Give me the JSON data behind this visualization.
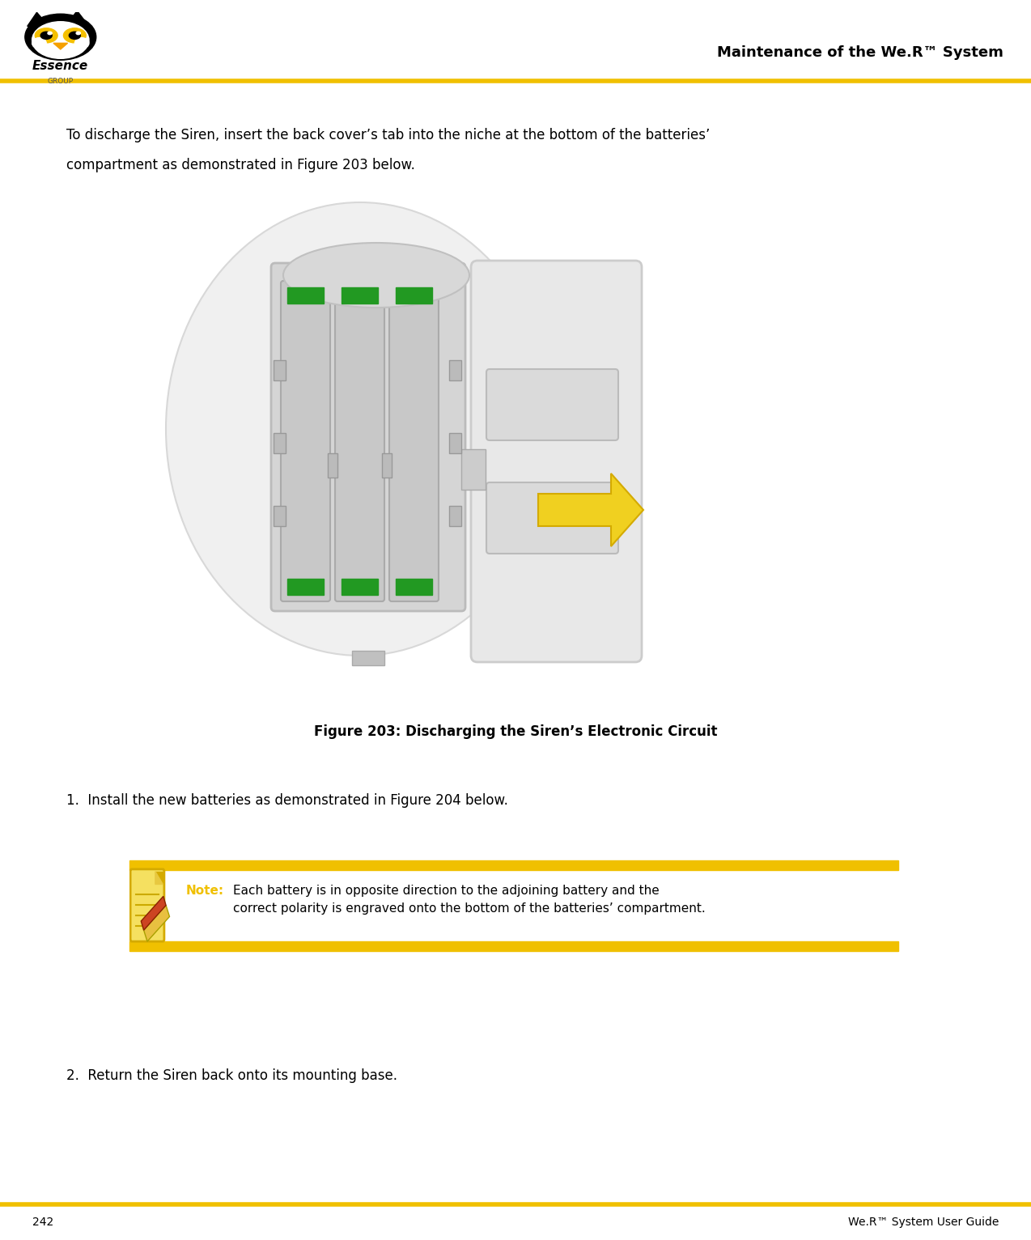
{
  "page_width": 12.74,
  "page_height": 15.32,
  "bg_color": "#ffffff",
  "header_line_color": "#f0c000",
  "header_line_thickness": 3,
  "header_title": "Maintenance of the We.R™ System",
  "header_title_fontsize": 13,
  "footer_line_color": "#f0c000",
  "footer_left_text": "242",
  "footer_right_text": "We.R™ System User Guide",
  "footer_fontsize": 10,
  "body_text1_line1": "To discharge the Siren, insert the back cover’s tab into the niche at the bottom of the batteries’",
  "body_text1_line2": "compartment as demonstrated in Figure 203 below.",
  "body_text1_fontsize": 12,
  "figure_caption": "Figure 203: Discharging the Siren’s Electronic Circuit",
  "figure_caption_fontsize": 12,
  "step1_text": "1.  Install the new batteries as demonstrated in Figure 204 below.",
  "step1_fontsize": 12,
  "note_label": "Note:",
  "note_label_color": "#f0c000",
  "note_text": "Each battery is in opposite direction to the adjoining battery and the\ncorrect polarity is engraved onto the bottom of the batteries’ compartment.",
  "note_fontsize": 11,
  "note_bar_color": "#f0c000",
  "step2_text": "2.  Return the Siren back onto its mounting base.",
  "step2_fontsize": 12
}
